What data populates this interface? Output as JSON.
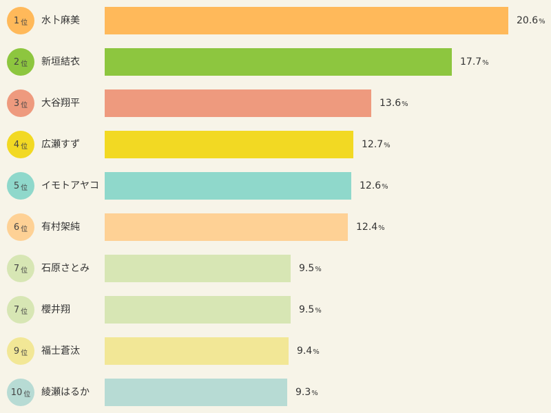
{
  "chart_data": {
    "type": "bar",
    "orientation": "horizontal",
    "rank_suffix": "位",
    "value_suffix": "%",
    "xlim": [
      0,
      20.6
    ],
    "rows": [
      {
        "rank": "1",
        "name": "水卜麻美",
        "value": 20.6,
        "color": "#ffb95a"
      },
      {
        "rank": "2",
        "name": "新垣結衣",
        "value": 17.7,
        "color": "#8dc63f"
      },
      {
        "rank": "3",
        "name": "大谷翔平",
        "value": 13.6,
        "color": "#ee9a7e"
      },
      {
        "rank": "4",
        "name": "広瀬すず",
        "value": 12.7,
        "color": "#f2d923"
      },
      {
        "rank": "5",
        "name": "イモトアヤコ",
        "value": 12.6,
        "color": "#8fd8cb"
      },
      {
        "rank": "6",
        "name": "有村架純",
        "value": 12.4,
        "color": "#fed195"
      },
      {
        "rank": "7",
        "name": "石原さとみ",
        "value": 9.5,
        "color": "#d7e6b4"
      },
      {
        "rank": "7",
        "name": "櫻井翔",
        "value": 9.5,
        "color": "#d7e6b4"
      },
      {
        "rank": "9",
        "name": "福士蒼汰",
        "value": 9.4,
        "color": "#f2e796"
      },
      {
        "rank": "10",
        "name": "綾瀬はるか",
        "value": 9.3,
        "color": "#b7dbd4"
      }
    ]
  }
}
